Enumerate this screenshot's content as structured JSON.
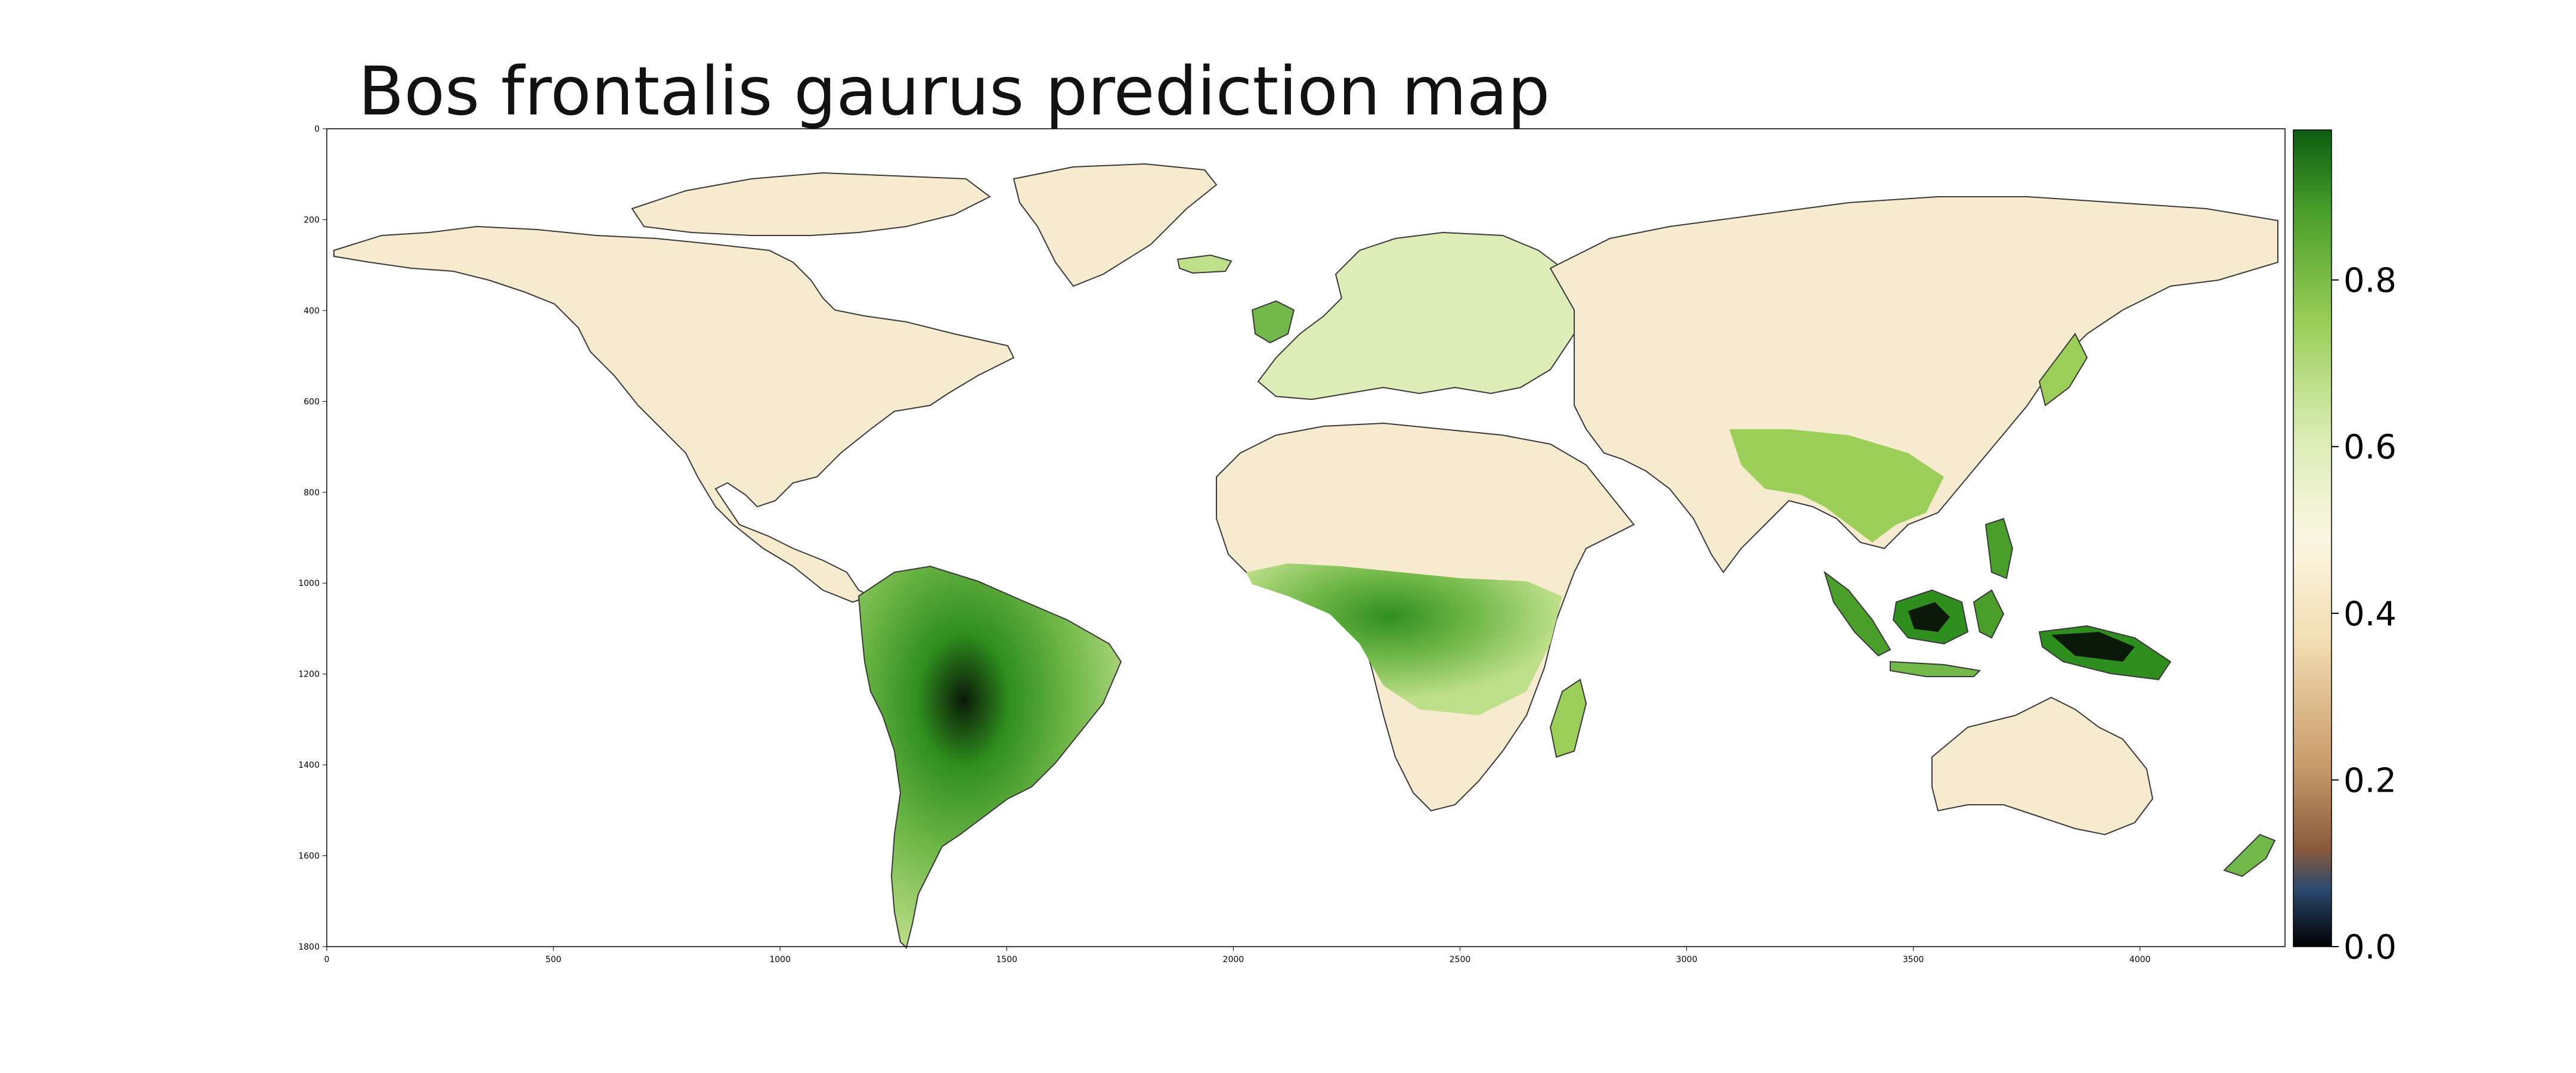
{
  "title": "Bos frontalis gaurus prediction map",
  "map": {
    "x_ticks": [
      0,
      500,
      1000,
      1500,
      2000,
      2500,
      3000,
      3500,
      4000
    ],
    "y_ticks": [
      0,
      200,
      400,
      600,
      800,
      1000,
      1200,
      1400,
      1600,
      1800
    ],
    "x_range": [
      0,
      4320
    ],
    "y_range": [
      0,
      1800
    ],
    "background_color": "#ffffff",
    "land_low_color": "#f6ebcf",
    "land_mid_color": "#bfe08a",
    "land_high_color": "#2f8f1e",
    "land_max_color": "#0b1a08"
  },
  "colorbar": {
    "ticks": [
      "0.0",
      "0.2",
      "0.4",
      "0.6",
      "0.8"
    ],
    "tick_values": [
      0.0,
      0.2,
      0.4,
      0.6,
      0.8
    ],
    "range": [
      0.0,
      0.98
    ],
    "colors": [
      "#000000",
      "#2b4a6e",
      "#8a5a3c",
      "#c89a6a",
      "#f3dfb4",
      "#fbf6e2",
      "#dcedb8",
      "#9ccf5a",
      "#4a9e2a",
      "#0e5c12"
    ]
  }
}
